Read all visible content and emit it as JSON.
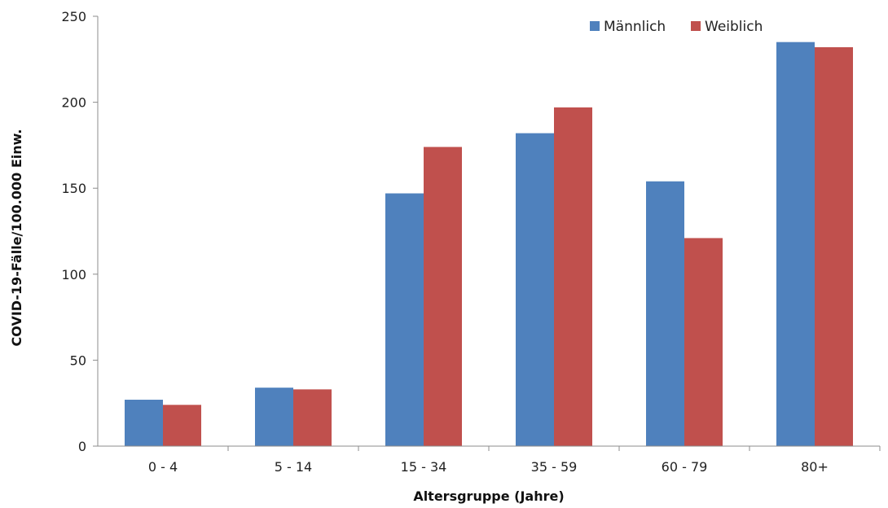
{
  "chart_data": {
    "type": "bar",
    "title": "",
    "xlabel": "Altersgruppe (Jahre)",
    "ylabel": "COVID-19-Fälle/100.000 Einw.",
    "ylim": [
      0,
      250
    ],
    "yticks": [
      0,
      50,
      100,
      150,
      200,
      250
    ],
    "grid": false,
    "legend_position": "top-right",
    "categories": [
      "0 - 4",
      "5 - 14",
      "15 - 34",
      "35 - 59",
      "60 - 79",
      "80+"
    ],
    "series": [
      {
        "name": "Männlich",
        "color": "#4F81BD",
        "values": [
          27,
          34,
          147,
          182,
          154,
          235
        ]
      },
      {
        "name": "Weiblich",
        "color": "#C0504D",
        "values": [
          24,
          33,
          174,
          197,
          121,
          232
        ]
      }
    ]
  }
}
